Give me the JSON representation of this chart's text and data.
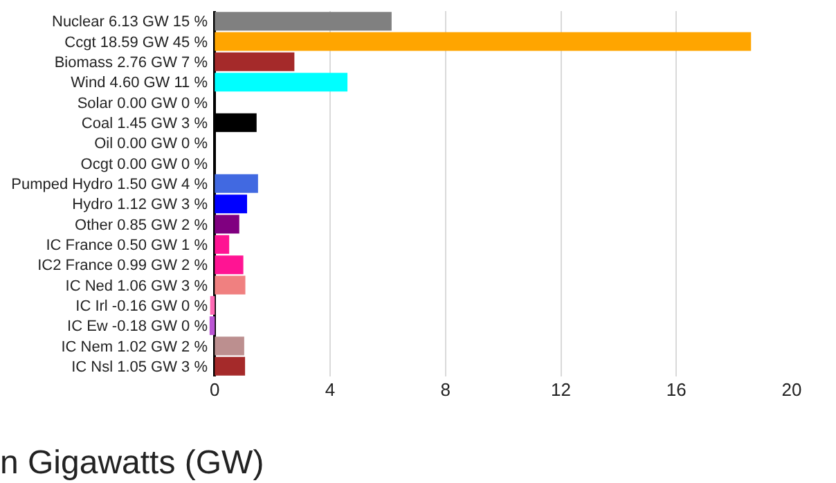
{
  "chart_data": {
    "type": "bar",
    "orientation": "horizontal",
    "xlabel": "n Gigawatts (GW)",
    "categories": [
      "Nuclear 6.13 GW 15 %",
      "Ccgt 18.59 GW 45 %",
      "Biomass 2.76 GW 7 %",
      "Wind 4.60 GW 11 %",
      "Solar 0.00 GW 0 %",
      "Coal 1.45 GW 3 %",
      "Oil 0.00 GW 0 %",
      "Ocgt 0.00 GW 0 %",
      "Pumped Hydro 1.50 GW 4 %",
      "Hydro 1.12 GW 3 %",
      "Other 0.85 GW 2 %",
      "IC France 0.50 GW 1 %",
      "IC2 France 0.99 GW 2 %",
      "IC Ned 1.06 GW 3 %",
      "IC Irl -0.16 GW 0 %",
      "IC Ew -0.18 GW 0 %",
      "IC Nem 1.02 GW 2 %",
      "IC Nsl 1.05 GW 3 %"
    ],
    "values": [
      6.13,
      18.59,
      2.76,
      4.6,
      0.0,
      1.45,
      0.0,
      0.0,
      1.5,
      1.12,
      0.85,
      0.5,
      0.99,
      1.06,
      -0.16,
      -0.18,
      1.02,
      1.05
    ],
    "colors": [
      "#808080",
      "#ffa500",
      "#a52a2a",
      "#00ffff",
      "#ffff00",
      "#000000",
      "#696969",
      "#d2691e",
      "#4169e1",
      "#0000ff",
      "#800080",
      "#ff1493",
      "#ff1493",
      "#f08080",
      "#ff69b4",
      "#ba55d3",
      "#bc8f8f",
      "#a52a2a"
    ],
    "xlim": [
      -0.2,
      20
    ],
    "xticks": [
      0,
      4,
      8,
      12,
      16,
      20
    ],
    "grid": "x",
    "legend": false
  }
}
